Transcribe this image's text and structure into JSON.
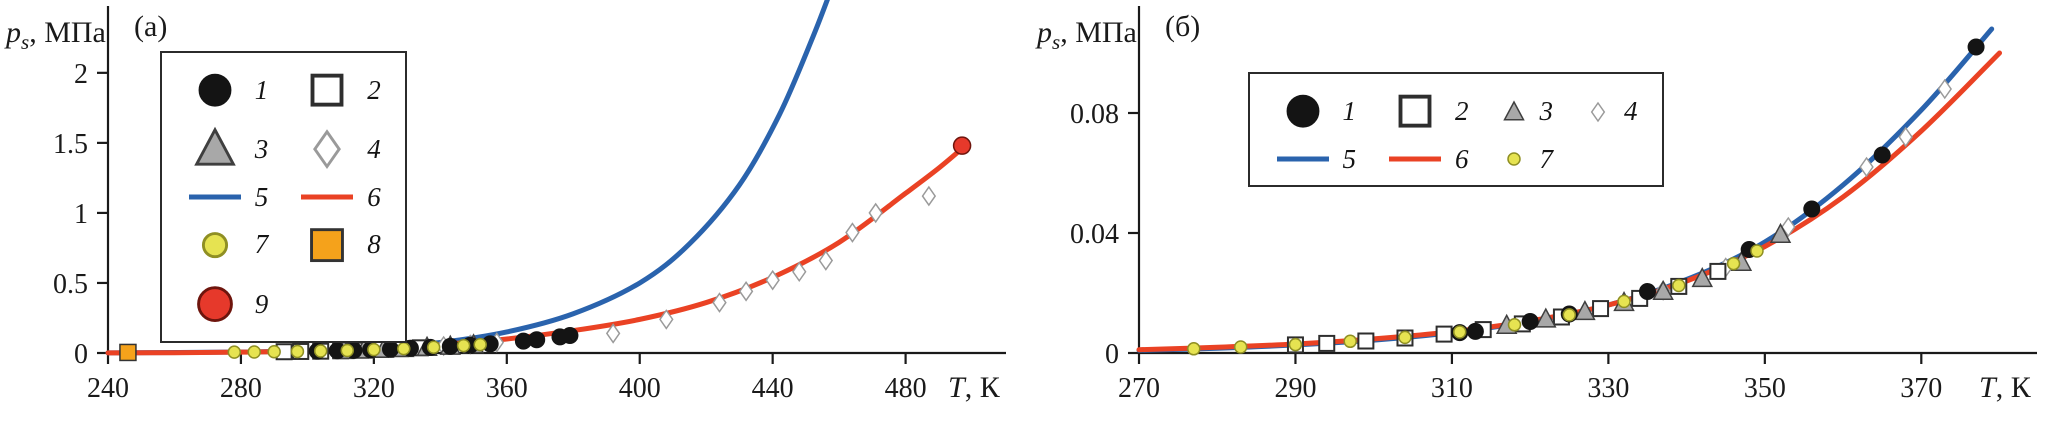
{
  "page": {
    "background": "#ffffff"
  },
  "colors": {
    "axis": "#1a1a1a",
    "text": "#1a1a1a",
    "line_blue": "#2a63ad",
    "line_red": "#ea4224"
  },
  "marker_styles": {
    "circle-black": {
      "shape": "circle",
      "fill": "#141414",
      "stroke": "#141414",
      "size": 8,
      "sw": 1
    },
    "square-open": {
      "shape": "square",
      "fill": "#ffffff",
      "stroke": "#2e2e2e",
      "size": 7.5,
      "sw": 2
    },
    "triangle-gray": {
      "shape": "triangle",
      "fill": "#a8a8a8",
      "stroke": "#3f3f3f",
      "size": 10,
      "sw": 1.5
    },
    "diamond-open": {
      "shape": "diamond",
      "fill": "#ffffff",
      "stroke": "#9a9a9a",
      "size": 9,
      "sw": 1.5
    },
    "circle-yellow": {
      "shape": "circle",
      "fill": "#e6e351",
      "stroke": "#8f8f23",
      "size": 6,
      "sw": 1.5
    },
    "square-orange": {
      "shape": "square",
      "fill": "#f5a21b",
      "stroke": "#333333",
      "size": 8,
      "sw": 1.5
    },
    "circle-red": {
      "shape": "circle",
      "fill": "#e6392b",
      "stroke": "#6e150d",
      "size": 8.5,
      "sw": 1.5
    },
    "line-blue": {
      "shape": "line",
      "stroke": "#2a63ad",
      "width": 5
    },
    "line-red": {
      "shape": "line",
      "stroke": "#ea4224",
      "width": 5
    }
  },
  "chart_data": [
    {
      "type": "line",
      "panel_label": "(а)",
      "ylabel_main": "p",
      "ylabel_sub": "s",
      "ylabel_unit": ", МПа",
      "xlabel_main": "T",
      "xlabel_unit": ", К",
      "xlim": [
        240,
        506
      ],
      "ylim": [
        0,
        2.42
      ],
      "x_ticks": [
        240,
        280,
        320,
        360,
        400,
        440,
        480
      ],
      "y_ticks": [
        0,
        0.5,
        1,
        1.5,
        2
      ],
      "y_tick_labels": [
        "0",
        "0.5",
        "1",
        "1.5",
        "2"
      ],
      "grid": false,
      "legend": {
        "columns": 2,
        "pos": {
          "left": "15.5%",
          "top": "12%"
        },
        "items": [
          {
            "marker": "circle-black",
            "label": "1"
          },
          {
            "marker": "square-open",
            "label": "2"
          },
          {
            "marker": "triangle-gray",
            "label": "3"
          },
          {
            "marker": "diamond-open",
            "label": "4"
          },
          {
            "marker": "line-blue",
            "label": "5"
          },
          {
            "marker": "line-red",
            "label": "6"
          },
          {
            "marker": "circle-yellow",
            "label": "7"
          },
          {
            "marker": "square-orange",
            "label": "8"
          },
          {
            "marker": "circle-red",
            "label": "9"
          }
        ]
      },
      "series": [
        {
          "name": "5-calc-blue",
          "kind": "line",
          "style": "line-blue",
          "points": [
            [
              240,
              0.001
            ],
            [
              280,
              0.007
            ],
            [
              300,
              0.016
            ],
            [
              320,
              0.035
            ],
            [
              340,
              0.075
            ],
            [
              360,
              0.15
            ],
            [
              380,
              0.28
            ],
            [
              400,
              0.5
            ],
            [
              415,
              0.78
            ],
            [
              430,
              1.2
            ],
            [
              442,
              1.7
            ],
            [
              452,
              2.25
            ],
            [
              458,
              2.62
            ]
          ]
        },
        {
          "name": "6-calc-red",
          "kind": "line",
          "style": "line-red",
          "points": [
            [
              240,
              0.001
            ],
            [
              260,
              0.002
            ],
            [
              280,
              0.006
            ],
            [
              300,
              0.013
            ],
            [
              320,
              0.03
            ],
            [
              340,
              0.06
            ],
            [
              360,
              0.1
            ],
            [
              380,
              0.16
            ],
            [
              400,
              0.24
            ],
            [
              420,
              0.36
            ],
            [
              440,
              0.54
            ],
            [
              460,
              0.79
            ],
            [
              480,
              1.14
            ],
            [
              490,
              1.32
            ],
            [
              498,
              1.48
            ]
          ]
        },
        {
          "name": "4-diamonds",
          "kind": "scatter",
          "style": "diamond-open",
          "points": [
            [
              341,
              0.05
            ],
            [
              349,
              0.06
            ],
            [
              357,
              0.075
            ],
            [
              392,
              0.14
            ],
            [
              408,
              0.24
            ],
            [
              424,
              0.36
            ],
            [
              432,
              0.44
            ],
            [
              440,
              0.52
            ],
            [
              448,
              0.58
            ],
            [
              456,
              0.66
            ],
            [
              464,
              0.86
            ],
            [
              471,
              1.0
            ],
            [
              487,
              1.12
            ]
          ]
        },
        {
          "name": "2-squares",
          "kind": "scatter",
          "style": "square-open",
          "points": [
            [
              293,
              0.009
            ],
            [
              298,
              0.011
            ],
            [
              304,
              0.013
            ],
            [
              310,
              0.016
            ],
            [
              316,
              0.02
            ],
            [
              322,
              0.025
            ],
            [
              328,
              0.031
            ],
            [
              334,
              0.037
            ]
          ]
        },
        {
          "name": "3-triangles",
          "kind": "scatter",
          "style": "triangle-gray",
          "points": [
            [
              311,
              0.017
            ],
            [
              317,
              0.021
            ],
            [
              323,
              0.026
            ],
            [
              329,
              0.032
            ],
            [
              336,
              0.04
            ],
            [
              343,
              0.048
            ],
            [
              350,
              0.058
            ]
          ]
        },
        {
          "name": "1-circles",
          "kind": "scatter",
          "style": "circle-black",
          "points": [
            [
              303,
              0.013
            ],
            [
              309,
              0.016
            ],
            [
              314,
              0.019
            ],
            [
              319,
              0.023
            ],
            [
              325,
              0.028
            ],
            [
              331,
              0.034
            ],
            [
              337,
              0.04
            ],
            [
              343,
              0.047
            ],
            [
              349,
              0.055
            ],
            [
              355,
              0.065
            ],
            [
              365,
              0.085
            ],
            [
              369,
              0.095
            ],
            [
              376,
              0.115
            ],
            [
              379,
              0.125
            ]
          ]
        },
        {
          "name": "7-yellow",
          "kind": "scatter",
          "style": "circle-yellow",
          "points": [
            [
              278,
              0.006
            ],
            [
              284,
              0.007
            ],
            [
              290,
              0.009
            ],
            [
              297,
              0.011
            ],
            [
              304,
              0.014
            ],
            [
              312,
              0.018
            ],
            [
              320,
              0.024
            ],
            [
              329,
              0.031
            ],
            [
              338,
              0.041
            ],
            [
              347,
              0.053
            ],
            [
              352,
              0.06
            ]
          ]
        },
        {
          "name": "8-orange",
          "kind": "scatter",
          "style": "square-orange",
          "points": [
            [
              246,
              0.004
            ]
          ]
        },
        {
          "name": "9-red",
          "kind": "scatter",
          "style": "circle-red",
          "points": [
            [
              497,
              1.48
            ]
          ]
        }
      ]
    },
    {
      "type": "line",
      "panel_label": "(б)",
      "ylabel_main": "p",
      "ylabel_sub": "s",
      "ylabel_unit": ", МПа",
      "xlabel_main": "T",
      "xlabel_unit": ", К",
      "xlim": [
        270,
        383
      ],
      "ylim": [
        0,
        0.113
      ],
      "x_ticks": [
        270,
        290,
        310,
        330,
        350,
        370
      ],
      "y_ticks": [
        0,
        0.04,
        0.08
      ],
      "y_tick_labels": [
        "0",
        "0.04",
        "0.08"
      ],
      "grid": false,
      "legend": {
        "columns": 4,
        "pos": {
          "left": "21%",
          "top": "17%"
        },
        "items": [
          {
            "marker": "circle-black",
            "label": "1"
          },
          {
            "marker": "square-open",
            "label": "2"
          },
          {
            "marker": "triangle-gray",
            "label": "3"
          },
          {
            "marker": "diamond-open",
            "label": "4"
          },
          {
            "marker": "line-blue",
            "label": "5"
          },
          {
            "marker": "line-red",
            "label": "6"
          },
          {
            "marker": "circle-yellow",
            "label": "7"
          }
        ]
      },
      "series": [
        {
          "name": "5-calc-blue",
          "kind": "line",
          "style": "line-blue",
          "points": [
            [
              270,
              0.0009
            ],
            [
              280,
              0.0016
            ],
            [
              290,
              0.0027
            ],
            [
              300,
              0.0043
            ],
            [
              310,
              0.0068
            ],
            [
              320,
              0.0105
            ],
            [
              330,
              0.016
            ],
            [
              340,
              0.0245
            ],
            [
              350,
              0.037
            ],
            [
              360,
              0.056
            ],
            [
              370,
              0.081
            ],
            [
              379,
              0.108
            ]
          ]
        },
        {
          "name": "6-calc-red",
          "kind": "line",
          "style": "line-red",
          "points": [
            [
              270,
              0.0011
            ],
            [
              280,
              0.0019
            ],
            [
              290,
              0.003
            ],
            [
              300,
              0.0047
            ],
            [
              310,
              0.0071
            ],
            [
              320,
              0.0107
            ],
            [
              330,
              0.016
            ],
            [
              340,
              0.024
            ],
            [
              350,
              0.0355
            ],
            [
              360,
              0.052
            ],
            [
              370,
              0.074
            ],
            [
              380,
              0.1
            ]
          ]
        },
        {
          "name": "4-diamonds",
          "kind": "scatter",
          "style": "diamond-open",
          "points": [
            [
              337,
              0.0208
            ],
            [
              345,
              0.0285
            ],
            [
              353,
              0.042
            ],
            [
              363,
              0.062
            ],
            [
              368,
              0.072
            ],
            [
              373,
              0.088
            ]
          ]
        },
        {
          "name": "2-squares",
          "kind": "scatter",
          "style": "square-open",
          "points": [
            [
              290,
              0.0027
            ],
            [
              294,
              0.0032
            ],
            [
              299,
              0.004
            ],
            [
              304,
              0.005
            ],
            [
              309,
              0.0063
            ],
            [
              314,
              0.0078
            ],
            [
              319,
              0.0097
            ],
            [
              324,
              0.012
            ],
            [
              329,
              0.0148
            ],
            [
              334,
              0.0182
            ],
            [
              339,
              0.0222
            ],
            [
              344,
              0.0272
            ]
          ]
        },
        {
          "name": "3-triangles",
          "kind": "scatter",
          "style": "triangle-gray",
          "points": [
            [
              317,
              0.0092
            ],
            [
              322,
              0.0113
            ],
            [
              327,
              0.0138
            ],
            [
              332,
              0.0168
            ],
            [
              337,
              0.0205
            ],
            [
              342,
              0.0248
            ],
            [
              347,
              0.0302
            ],
            [
              352,
              0.0395
            ]
          ]
        },
        {
          "name": "1-circles",
          "kind": "scatter",
          "style": "circle-black",
          "points": [
            [
              311,
              0.0068
            ],
            [
              313,
              0.0072
            ],
            [
              320,
              0.0105
            ],
            [
              325,
              0.013
            ],
            [
              335,
              0.0205
            ],
            [
              348,
              0.0345
            ],
            [
              356,
              0.048
            ],
            [
              365,
              0.066
            ],
            [
              377,
              0.102
            ]
          ]
        },
        {
          "name": "7-yellow",
          "kind": "scatter",
          "style": "circle-yellow",
          "points": [
            [
              277,
              0.0014
            ],
            [
              283,
              0.002
            ],
            [
              290,
              0.0028
            ],
            [
              297,
              0.0039
            ],
            [
              304,
              0.0052
            ],
            [
              311,
              0.007
            ],
            [
              318,
              0.0094
            ],
            [
              325,
              0.0127
            ],
            [
              332,
              0.0172
            ],
            [
              339,
              0.0225
            ],
            [
              346,
              0.0298
            ],
            [
              349,
              0.034
            ]
          ]
        }
      ]
    }
  ]
}
